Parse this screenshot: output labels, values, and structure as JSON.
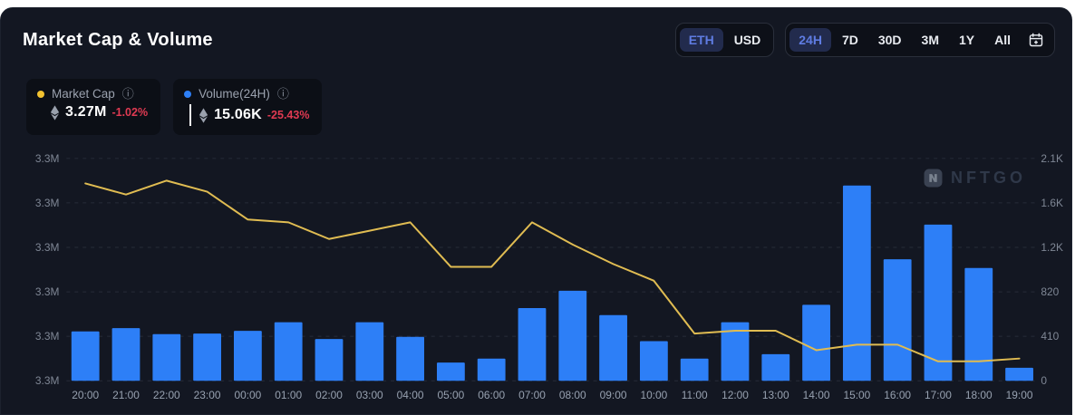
{
  "header": {
    "title": "Market Cap & Volume"
  },
  "controls": {
    "currency_toggle": {
      "options": [
        {
          "label": "ETH",
          "selected": true
        },
        {
          "label": "USD",
          "selected": false
        }
      ]
    },
    "timeframe": {
      "options": [
        {
          "label": "24H",
          "selected": true
        },
        {
          "label": "7D",
          "selected": false
        },
        {
          "label": "30D",
          "selected": false
        },
        {
          "label": "3M",
          "selected": false
        },
        {
          "label": "1Y",
          "selected": false
        },
        {
          "label": "All",
          "selected": false
        }
      ],
      "calendar_icon": "calendar-icon"
    }
  },
  "legend": {
    "market_cap": {
      "label": "Market Cap",
      "info_glyph": "ⓘ",
      "value": "3.27M",
      "change": "-1.02%",
      "dot_color": "#f2c230",
      "currency_icon": "eth-icon"
    },
    "volume": {
      "label": "Volume(24H)",
      "info_glyph": "ⓘ",
      "value": "15.06K",
      "change": "-25.43%",
      "dot_color": "#2d7ff7",
      "currency_icon": "eth-icon"
    }
  },
  "watermark": {
    "text": "NFTGO",
    "icon": "nftgo-logo-icon"
  },
  "colors": {
    "panel_bg": "#131722",
    "card_bg": "#0c0f16",
    "bar_blue": "#2d7ff7",
    "line_yellow": "#e0bc52",
    "negative_red": "#e03a52",
    "selected_pill_bg": "#222b4d",
    "selected_pill_text": "#5f7ce2",
    "grid": "#272c38",
    "tick_text": "#7f8795",
    "x_tick_text": "#97a1b0"
  },
  "chart_data": {
    "type": "bar+line",
    "title": "Market Cap & Volume",
    "categories": [
      "20:00",
      "21:00",
      "22:00",
      "23:00",
      "00:00",
      "01:00",
      "02:00",
      "03:00",
      "04:00",
      "05:00",
      "06:00",
      "07:00",
      "08:00",
      "09:00",
      "10:00",
      "11:00",
      "12:00",
      "13:00",
      "14:00",
      "15:00",
      "16:00",
      "17:00",
      "18:00",
      "19:00"
    ],
    "series": [
      {
        "name": "Market Cap",
        "type": "line",
        "axis": "left",
        "color": "#e0bc52",
        "values": [
          3.331,
          3.327,
          3.332,
          3.328,
          3.318,
          3.317,
          3.311,
          3.314,
          3.317,
          3.301,
          3.301,
          3.317,
          3.309,
          3.302,
          3.296,
          3.277,
          3.278,
          3.278,
          3.271,
          3.273,
          3.273,
          3.267,
          3.267,
          3.268
        ]
      },
      {
        "name": "Volume(24H)",
        "type": "bar",
        "axis": "right",
        "color": "#2d7ff7",
        "values": [
          455,
          485,
          430,
          435,
          460,
          540,
          385,
          540,
          405,
          168,
          205,
          670,
          830,
          605,
          365,
          205,
          540,
          245,
          700,
          1800,
          1120,
          1440,
          1040,
          120
        ]
      }
    ],
    "left_axis": {
      "ticks_top_to_bottom": [
        "3.3M",
        "3.3M",
        "3.3M",
        "3.3M",
        "3.3M",
        "3.3M"
      ],
      "range": [
        3.26,
        3.34
      ],
      "unit": "ETH (millions)"
    },
    "right_axis": {
      "ticks_top_to_bottom": [
        "2.1K",
        "1.6K",
        "1.2K",
        "820",
        "410",
        "0"
      ],
      "range": [
        0,
        2050
      ],
      "unit": "ETH"
    },
    "grid": "horizontal dashed",
    "legend_position": "top-left cards"
  }
}
